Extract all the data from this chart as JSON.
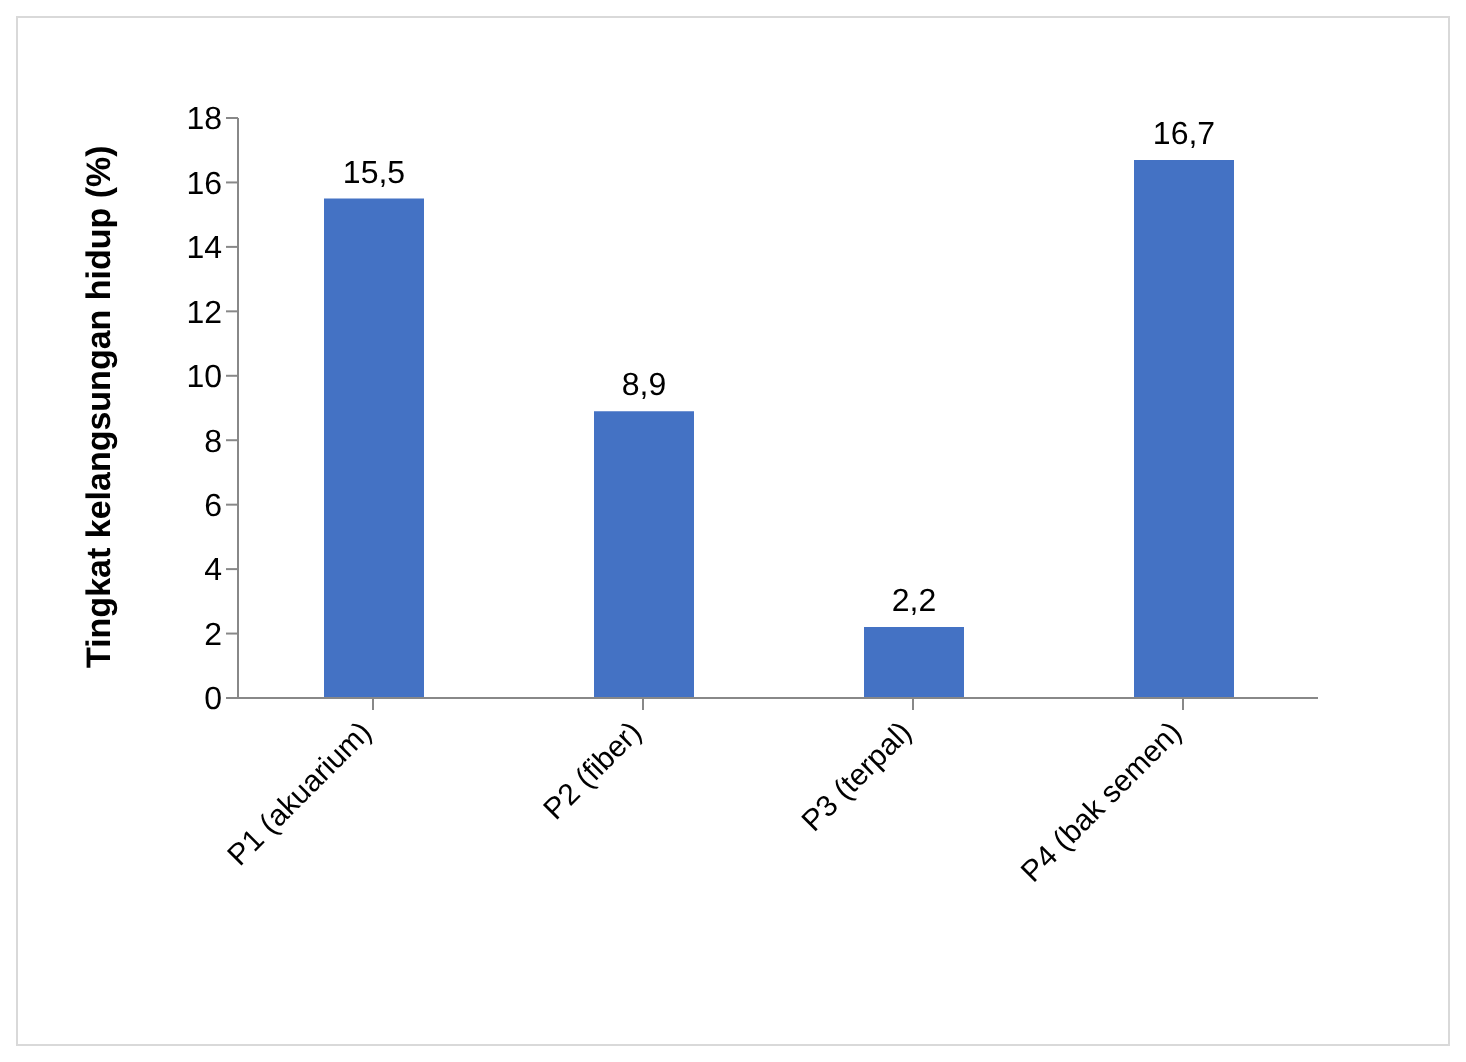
{
  "chart_data": {
    "type": "bar",
    "ylabel": "Tingkat kelangsungan hidup (%)",
    "categories": [
      "P1 (akuarium)",
      "P2 (fiber)",
      "P3 (terpal)",
      "P4 (bak semen)"
    ],
    "values": [
      15.5,
      8.9,
      2.2,
      16.7
    ],
    "value_labels": [
      "15,5",
      "8,9",
      "2,2",
      "16,7"
    ],
    "color": "#4472c4",
    "ylim": [
      0,
      18
    ],
    "yticks": [
      0,
      2,
      4,
      6,
      8,
      10,
      12,
      14,
      16,
      18
    ],
    "grid": false,
    "legend": false
  }
}
